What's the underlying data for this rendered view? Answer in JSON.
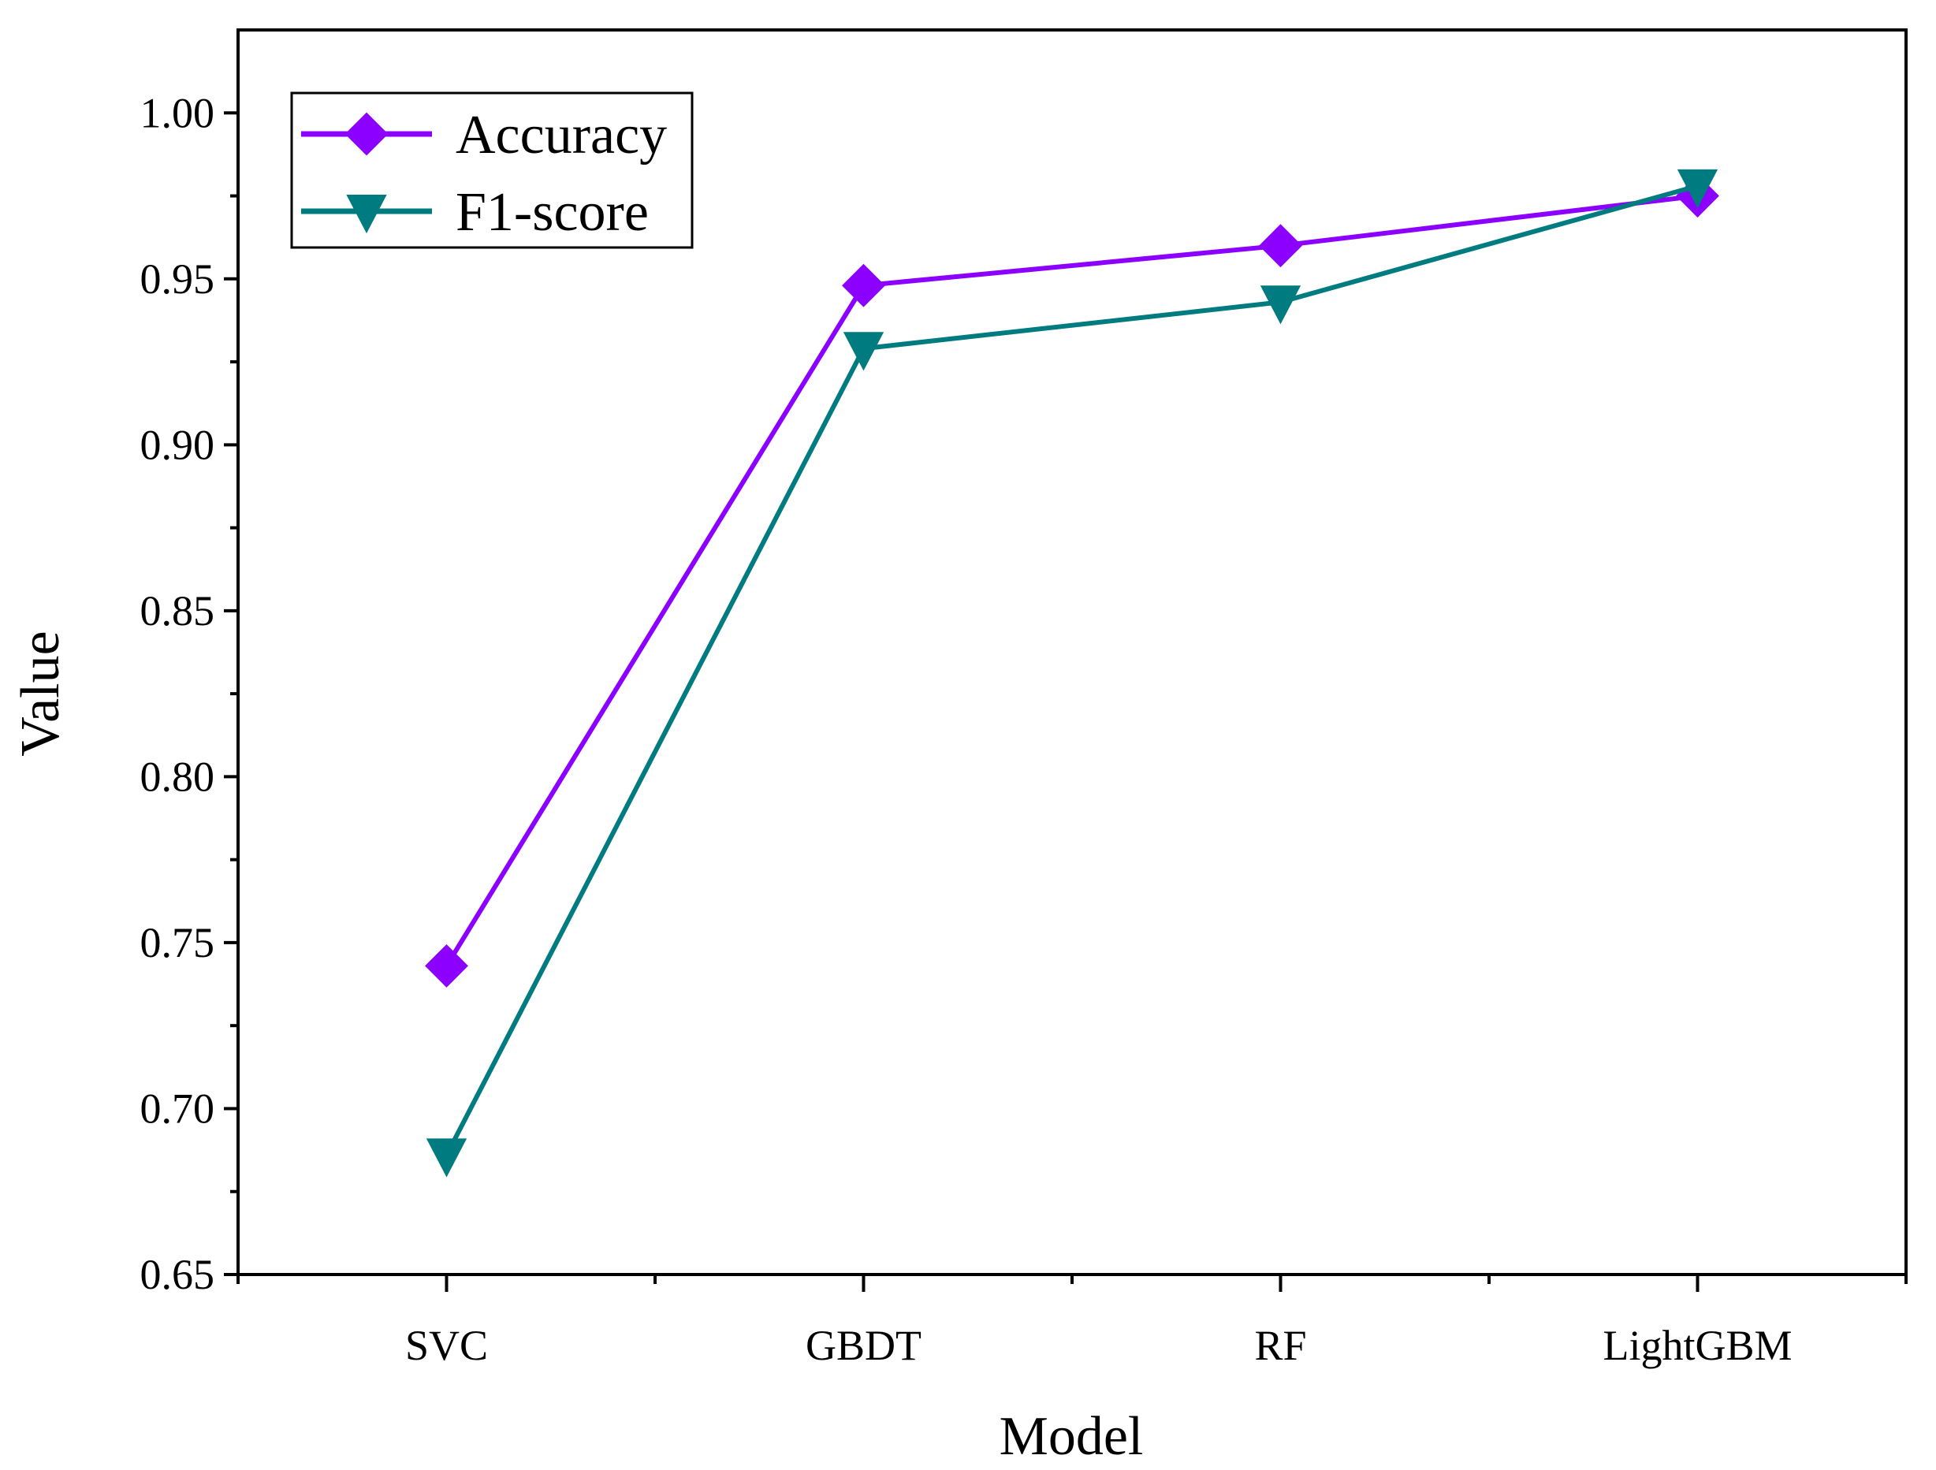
{
  "chart_data": {
    "type": "line",
    "title": "",
    "xlabel": "Model",
    "ylabel": "Value",
    "categories": [
      "SVC",
      "GBDT",
      "RF",
      "LightGBM"
    ],
    "ylim": [
      0.65,
      1.025
    ],
    "yticks": [
      "0.65",
      "0.70",
      "0.75",
      "0.80",
      "0.85",
      "0.90",
      "0.95",
      "1.00"
    ],
    "ytick_values": [
      0.65,
      0.7,
      0.75,
      0.8,
      0.85,
      0.9,
      0.95,
      1.0
    ],
    "grid": false,
    "legend_position": "top-left",
    "series": [
      {
        "name": "Accuracy",
        "color": "#8B00FF",
        "marker": "diamond",
        "values": [
          0.743,
          0.948,
          0.96,
          0.975
        ]
      },
      {
        "name": "F1-score",
        "color": "#007B7F",
        "marker": "triangle-down",
        "values": [
          0.686,
          0.929,
          0.943,
          0.978
        ]
      }
    ]
  }
}
